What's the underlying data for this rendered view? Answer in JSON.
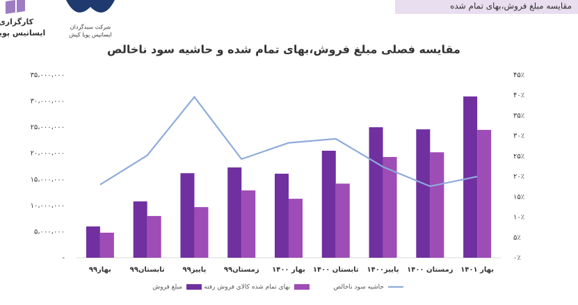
{
  "page": {
    "header": "مقایسه مبلغ فروش،بهای تمام شده",
    "logos": [
      [
        "کارگزاری",
        "ایساتیس پویا"
      ],
      [
        "شرکت سبدگردان",
        "ایساتیس پویا کیش"
      ]
    ]
  },
  "chart_data": {
    "type": "bar_line",
    "title": "مقایسه فصلی مبلغ فروش،بهای تمام شده و حاشیه سود ناخالص",
    "categories": [
      "بهار۹۹",
      "تابستان۹۹",
      "پاییز۹۹",
      "زمستان۹۹",
      "بهار ۱۴۰۰",
      "تابستان ۱۴۰۰",
      "پاییز۱۴۰۰",
      "زمستان ۱۴۰۰",
      "بهار ۱۴۰۱"
    ],
    "series": [
      {
        "name": "مبلغ فروش",
        "color": "#7030a0",
        "type": "bar",
        "values": [
          6000000,
          10800000,
          16200000,
          17300000,
          16100000,
          20500000,
          25000000,
          24600000,
          30900000
        ]
      },
      {
        "name": "بهای تمام شده کالای فروش رفته",
        "color": "#9e4cb6",
        "type": "bar",
        "values": [
          4800000,
          8000000,
          9700000,
          12900000,
          11300000,
          14200000,
          19300000,
          20200000,
          24500000
        ]
      },
      {
        "name": "حاشیه سود ناخالص",
        "color": "#8eaadb",
        "type": "line",
        "axis": "y2",
        "values": [
          18.0,
          25.2,
          39.6,
          24.3,
          28.3,
          29.3,
          22.4,
          17.6,
          20.0
        ]
      }
    ],
    "ylim": [
      0,
      35000000
    ],
    "yticks": [
      {
        "value": 0,
        "label": "-"
      },
      {
        "value": 5000000,
        "label": "۵،۰۰۰،۰۰۰"
      },
      {
        "value": 10000000,
        "label": "۱۰،۰۰۰،۰۰۰"
      },
      {
        "value": 15000000,
        "label": "۱۵،۰۰۰،۰۰۰"
      },
      {
        "value": 20000000,
        "label": "۲۰،۰۰۰،۰۰۰"
      },
      {
        "value": 25000000,
        "label": "۲۵،۰۰۰،۰۰۰"
      },
      {
        "value": 30000000,
        "label": "۳۰،۰۰۰،۰۰۰"
      },
      {
        "value": 35000000,
        "label": "۳۵،۰۰۰،۰۰۰"
      }
    ],
    "y2lim": [
      0,
      45
    ],
    "y2ticks": [
      {
        "value": 0,
        "label": "۰٪"
      },
      {
        "value": 5,
        "label": "۵٪"
      },
      {
        "value": 10,
        "label": "۱۰٪"
      },
      {
        "value": 15,
        "label": "۱۵٪"
      },
      {
        "value": 20,
        "label": "۲۰٪"
      },
      {
        "value": 25,
        "label": "۲۵٪"
      },
      {
        "value": 30,
        "label": "۳۰٪"
      },
      {
        "value": 35,
        "label": "۳۵٪"
      },
      {
        "value": 40,
        "label": "۴۰٪"
      },
      {
        "value": 45,
        "label": "۴۵٪"
      }
    ],
    "grid": false,
    "legend": "bottom"
  }
}
